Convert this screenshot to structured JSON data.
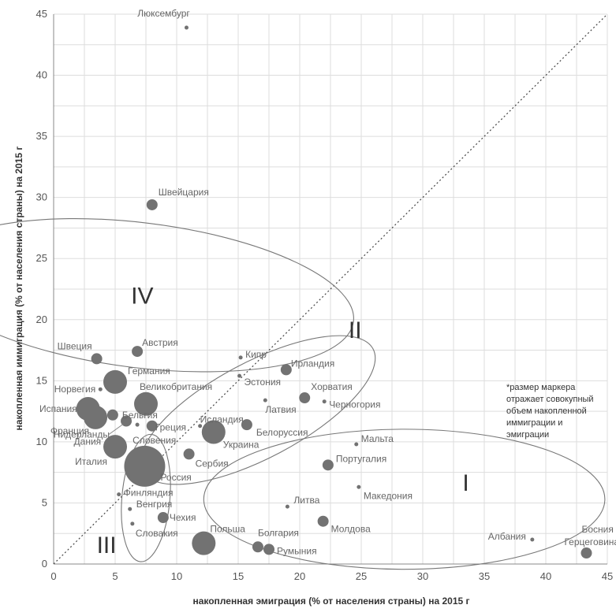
{
  "chart_data": {
    "type": "scatter",
    "xlabel": "накопленная эмиграция (% от населения страны) на 2015 г",
    "ylabel": "накопленная иммиграция (% от населения страны) на 2015 г",
    "xlim": [
      0,
      45
    ],
    "ylim": [
      0,
      45
    ],
    "x_ticks": [
      0,
      5,
      10,
      15,
      20,
      25,
      30,
      35,
      40,
      45
    ],
    "y_ticks": [
      0,
      5,
      10,
      15,
      20,
      25,
      30,
      35,
      40,
      45
    ],
    "grid": true,
    "diagonal_line": "y = x",
    "note_lines": [
      "*размер маркера",
      "отражает совокупный",
      "объем накопленной",
      "иммиграции и",
      "эмиграции"
    ],
    "group_labels": [
      "I",
      "II",
      "III",
      "IV"
    ],
    "points": [
      {
        "label": "Люксембург",
        "x": 10.8,
        "y": 43.9,
        "size": "small"
      },
      {
        "label": "Швейцария",
        "x": 8.0,
        "y": 29.4,
        "size": "medium"
      },
      {
        "label": "Австрия",
        "x": 6.8,
        "y": 17.4,
        "size": "medium"
      },
      {
        "label": "Швеция",
        "x": 3.5,
        "y": 16.8,
        "size": "medium"
      },
      {
        "label": "Германия",
        "x": 5.0,
        "y": 14.9,
        "size": "large"
      },
      {
        "label": "Норвегия",
        "x": 3.8,
        "y": 14.3,
        "size": "small"
      },
      {
        "label": "Великобритания",
        "x": 7.5,
        "y": 13.1,
        "size": "large"
      },
      {
        "label": "Испания",
        "x": 2.8,
        "y": 12.7,
        "size": "large"
      },
      {
        "label": "Бельгия",
        "x": 4.8,
        "y": 12.2,
        "size": "medium"
      },
      {
        "label": "Франция",
        "x": 3.4,
        "y": 12.0,
        "size": "large"
      },
      {
        "label": "Нидерланды",
        "x": 5.9,
        "y": 11.7,
        "size": "medium"
      },
      {
        "label": "Греция",
        "x": 8.0,
        "y": 11.3,
        "size": "medium"
      },
      {
        "label": "Словения",
        "x": 6.8,
        "y": 11.4,
        "size": "small"
      },
      {
        "label": "Дания",
        "x": 4.5,
        "y": 10.1,
        "size": "small"
      },
      {
        "label": "Италия",
        "x": 5.0,
        "y": 9.6,
        "size": "large"
      },
      {
        "label": "Россия",
        "x": 7.4,
        "y": 8.0,
        "size": "xlarge"
      },
      {
        "label": "Кипр",
        "x": 15.2,
        "y": 16.9,
        "size": "small"
      },
      {
        "label": "Ирландия",
        "x": 18.9,
        "y": 15.9,
        "size": "medium"
      },
      {
        "label": "Эстония",
        "x": 15.1,
        "y": 15.4,
        "size": "small"
      },
      {
        "label": "Хорватия",
        "x": 20.4,
        "y": 13.6,
        "size": "medium"
      },
      {
        "label": "Латвия",
        "x": 17.2,
        "y": 13.4,
        "size": "small"
      },
      {
        "label": "Черногория",
        "x": 22.0,
        "y": 13.3,
        "size": "small"
      },
      {
        "label": "Исландия",
        "x": 11.9,
        "y": 11.3,
        "size": "small"
      },
      {
        "label": "Белоруссия",
        "x": 15.7,
        "y": 11.4,
        "size": "medium"
      },
      {
        "label": "Украина",
        "x": 13.0,
        "y": 10.8,
        "size": "large"
      },
      {
        "label": "Сербия",
        "x": 11.0,
        "y": 9.0,
        "size": "medium"
      },
      {
        "label": "Мальта",
        "x": 24.6,
        "y": 9.8,
        "size": "small"
      },
      {
        "label": "Португалия",
        "x": 22.3,
        "y": 8.1,
        "size": "medium"
      },
      {
        "label": "Македония",
        "x": 24.8,
        "y": 6.3,
        "size": "small"
      },
      {
        "label": "Литва",
        "x": 19.0,
        "y": 4.7,
        "size": "small"
      },
      {
        "label": "Молдова",
        "x": 21.9,
        "y": 3.5,
        "size": "medium"
      },
      {
        "label": "Польша",
        "x": 12.2,
        "y": 1.7,
        "size": "large"
      },
      {
        "label": "Болгария",
        "x": 16.6,
        "y": 1.4,
        "size": "medium"
      },
      {
        "label": "Румыния",
        "x": 17.5,
        "y": 1.2,
        "size": "medium"
      },
      {
        "label": "Албания",
        "x": 38.9,
        "y": 2.0,
        "size": "small"
      },
      {
        "label": "Босния и Герцеговина",
        "x": 43.3,
        "y": 0.9,
        "size": "medium"
      },
      {
        "label": "Финляндия",
        "x": 5.3,
        "y": 5.7,
        "size": "small"
      },
      {
        "label": "Венгрия",
        "x": 6.2,
        "y": 4.5,
        "size": "small"
      },
      {
        "label": "Чехия",
        "x": 8.9,
        "y": 3.8,
        "size": "medium"
      },
      {
        "label": "Словакия",
        "x": 6.4,
        "y": 3.3,
        "size": "small"
      }
    ]
  }
}
